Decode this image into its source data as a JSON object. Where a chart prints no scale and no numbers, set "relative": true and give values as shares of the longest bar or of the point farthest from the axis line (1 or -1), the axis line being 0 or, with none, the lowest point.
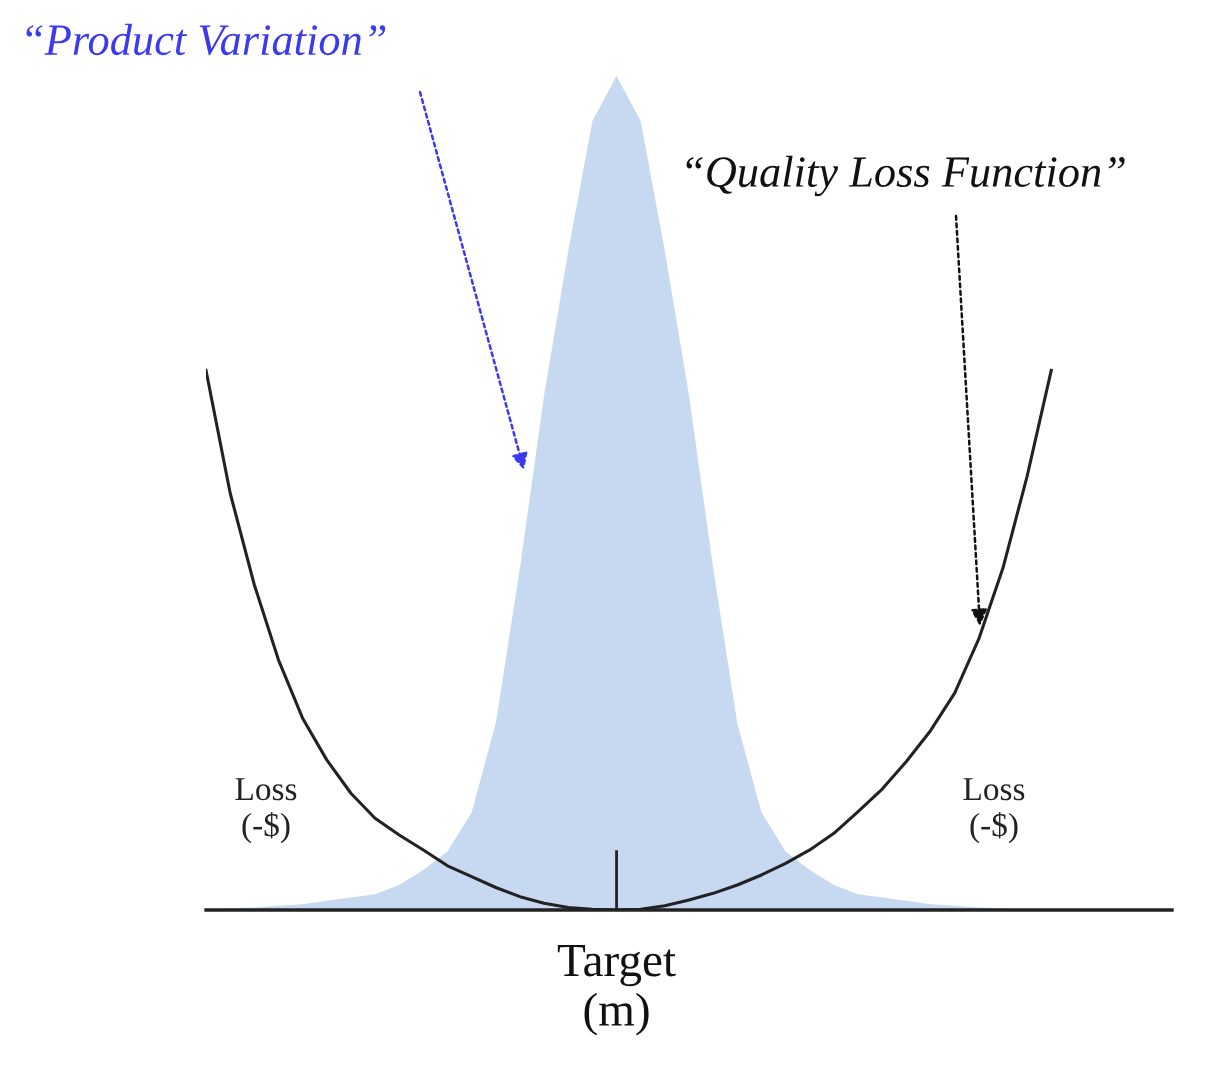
{
  "chart_data": {
    "type": "area",
    "relative": true,
    "categories": [
      null,
      null,
      null,
      null,
      null,
      null,
      null,
      null,
      null,
      null,
      null,
      null,
      null,
      null,
      null,
      null,
      null,
      null,
      null,
      null,
      null,
      null,
      null,
      null,
      null,
      null,
      null,
      null,
      null,
      null,
      null,
      null,
      null,
      null,
      null,
      null,
      null,
      null,
      null,
      null,
      null
    ],
    "series": [
      {
        "color": "#c6d9f0",
        "values": [
          0.001,
          0.002,
          0.003,
          0.005,
          0.007,
          0.011,
          0.015,
          0.019,
          0.03,
          0.048,
          0.07,
          0.117,
          0.224,
          0.41,
          0.617,
          0.79,
          0.946,
          1.0,
          0.946,
          0.79,
          0.617,
          0.41,
          0.224,
          0.117,
          0.07,
          0.048,
          0.03,
          0.019,
          0.015,
          0.011,
          0.007,
          0.005,
          0.003,
          0.002,
          0.001,
          0,
          null,
          null,
          null,
          null,
          null
        ]
      },
      {
        "type": "line",
        "color": "#222222",
        "values": [
          0.647,
          0.5,
          0.39,
          0.3,
          0.23,
          0.18,
          0.14,
          0.11,
          0.09,
          0.072,
          0.053,
          0.04,
          0.027,
          0.016,
          0.008,
          0.003,
          0.001,
          0,
          0.001,
          0.005,
          0.012,
          0.02,
          0.03,
          0.042,
          0.056,
          0.072,
          0.092,
          0.118,
          0.145,
          0.178,
          0.215,
          0.26,
          0.325,
          0.41,
          0.52,
          0.647,
          null,
          null,
          null,
          null,
          null
        ]
      }
    ],
    "annotations": [
      "“Product Variation”",
      "“Quality Loss Function”",
      "Loss\n(-$)",
      "Loss\n(-$)",
      "Target\n(m)"
    ]
  }
}
